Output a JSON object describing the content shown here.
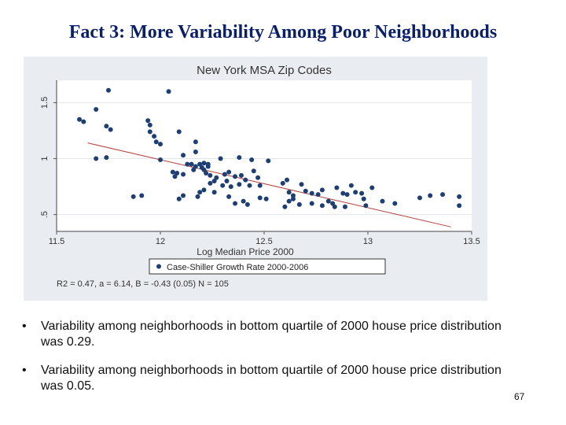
{
  "slide": {
    "title": "Fact 3: More Variability Among Poor Neighborhoods",
    "bullets": [
      {
        "marker": "•",
        "text": "Variability among neighborhoods in bottom quartile of 2000 house price distribution was 0.29."
      },
      {
        "marker": "•",
        "text": "Variability among neighborhoods in bottom quartile of 2000 house price distribution was 0.05."
      }
    ],
    "page_number": "67"
  },
  "colors": {
    "title": "#0a1f6b",
    "points": "#1d3f73",
    "fit_line": "#b0413e",
    "plot_bg": "#ffffff",
    "panel_bg": "#e9edf2"
  },
  "chart_data": {
    "type": "scatter",
    "title": "New York MSA Zip Codes",
    "xlabel": "Log Median Price 2000",
    "ylabel": "",
    "xlim": [
      11.5,
      13.5
    ],
    "ylim": [
      0.35,
      1.7
    ],
    "xticks": [
      "11.5",
      "12",
      "12.5",
      "13",
      "13.5"
    ],
    "yticks": [
      "1.5",
      "1",
      ".5"
    ],
    "grid": "y",
    "legend": {
      "position": "bottom",
      "entries": [
        "Case-Shiller Growth Rate 2000-2006"
      ]
    },
    "annotation": "R2 = 0.47, a = 6.14, B = -0.43 (0.05) N = 105",
    "fit_line": {
      "x": [
        11.65,
        13.4
      ],
      "y": [
        1.14,
        0.39
      ]
    },
    "series": [
      {
        "name": "Case-Shiller Growth Rate 2000-2006",
        "points": [
          [
            11.75,
            1.61
          ],
          [
            12.04,
            1.6
          ],
          [
            11.69,
            1.44
          ],
          [
            11.61,
            1.35
          ],
          [
            11.63,
            1.33
          ],
          [
            11.74,
            1.29
          ],
          [
            11.76,
            1.26
          ],
          [
            11.94,
            1.34
          ],
          [
            11.95,
            1.3
          ],
          [
            11.95,
            1.24
          ],
          [
            12.09,
            1.24
          ],
          [
            11.97,
            1.2
          ],
          [
            11.98,
            1.15
          ],
          [
            12.0,
            1.13
          ],
          [
            11.69,
            1.0
          ],
          [
            11.74,
            1.01
          ],
          [
            12.0,
            0.99
          ],
          [
            12.11,
            1.03
          ],
          [
            12.17,
            1.15
          ],
          [
            12.17,
            1.06
          ],
          [
            12.29,
            1.0
          ],
          [
            12.38,
            1.01
          ],
          [
            12.44,
            0.99
          ],
          [
            12.52,
            0.98
          ],
          [
            12.13,
            0.95
          ],
          [
            12.15,
            0.95
          ],
          [
            12.17,
            0.93
          ],
          [
            12.19,
            0.95
          ],
          [
            12.2,
            0.92
          ],
          [
            12.21,
            0.9
          ],
          [
            12.23,
            0.93
          ],
          [
            12.16,
            0.9
          ],
          [
            12.21,
            0.96
          ],
          [
            12.23,
            0.95
          ],
          [
            12.06,
            0.88
          ],
          [
            12.07,
            0.84
          ],
          [
            12.08,
            0.87
          ],
          [
            12.11,
            0.86
          ],
          [
            12.22,
            0.87
          ],
          [
            12.24,
            0.85
          ],
          [
            12.26,
            0.8
          ],
          [
            12.27,
            0.83
          ],
          [
            12.31,
            0.86
          ],
          [
            12.33,
            0.88
          ],
          [
            12.36,
            0.84
          ],
          [
            12.39,
            0.85
          ],
          [
            12.41,
            0.81
          ],
          [
            12.45,
            0.89
          ],
          [
            12.47,
            0.83
          ],
          [
            12.3,
            0.76
          ],
          [
            12.34,
            0.75
          ],
          [
            12.38,
            0.77
          ],
          [
            12.43,
            0.76
          ],
          [
            12.48,
            0.76
          ],
          [
            12.21,
            0.72
          ],
          [
            12.19,
            0.7
          ],
          [
            12.26,
            0.7
          ],
          [
            12.24,
            0.78
          ],
          [
            12.32,
            0.8
          ],
          [
            11.87,
            0.66
          ],
          [
            11.91,
            0.67
          ],
          [
            12.09,
            0.64
          ],
          [
            12.11,
            0.67
          ],
          [
            12.18,
            0.66
          ],
          [
            12.33,
            0.66
          ],
          [
            12.36,
            0.6
          ],
          [
            12.4,
            0.62
          ],
          [
            12.42,
            0.59
          ],
          [
            12.48,
            0.65
          ],
          [
            12.51,
            0.64
          ],
          [
            12.59,
            0.78
          ],
          [
            12.61,
            0.81
          ],
          [
            12.62,
            0.7
          ],
          [
            12.64,
            0.67
          ],
          [
            12.68,
            0.77
          ],
          [
            12.7,
            0.71
          ],
          [
            12.73,
            0.69
          ],
          [
            12.76,
            0.68
          ],
          [
            12.62,
            0.62
          ],
          [
            12.64,
            0.64
          ],
          [
            12.67,
            0.59
          ],
          [
            12.73,
            0.6
          ],
          [
            12.78,
            0.58
          ],
          [
            12.81,
            0.62
          ],
          [
            12.83,
            0.6
          ],
          [
            12.84,
            0.57
          ],
          [
            12.88,
            0.69
          ],
          [
            12.9,
            0.68
          ],
          [
            12.94,
            0.7
          ],
          [
            12.97,
            0.69
          ],
          [
            12.98,
            0.64
          ],
          [
            13.07,
            0.62
          ],
          [
            12.78,
            0.72
          ],
          [
            12.85,
            0.74
          ],
          [
            12.92,
            0.76
          ],
          [
            13.02,
            0.74
          ],
          [
            12.99,
            0.58
          ],
          [
            12.89,
            0.57
          ],
          [
            13.13,
            0.6
          ],
          [
            13.25,
            0.65
          ],
          [
            13.3,
            0.67
          ],
          [
            13.36,
            0.68
          ],
          [
            13.44,
            0.66
          ],
          [
            13.44,
            0.58
          ],
          [
            12.6,
            0.57
          ]
        ]
      }
    ]
  }
}
